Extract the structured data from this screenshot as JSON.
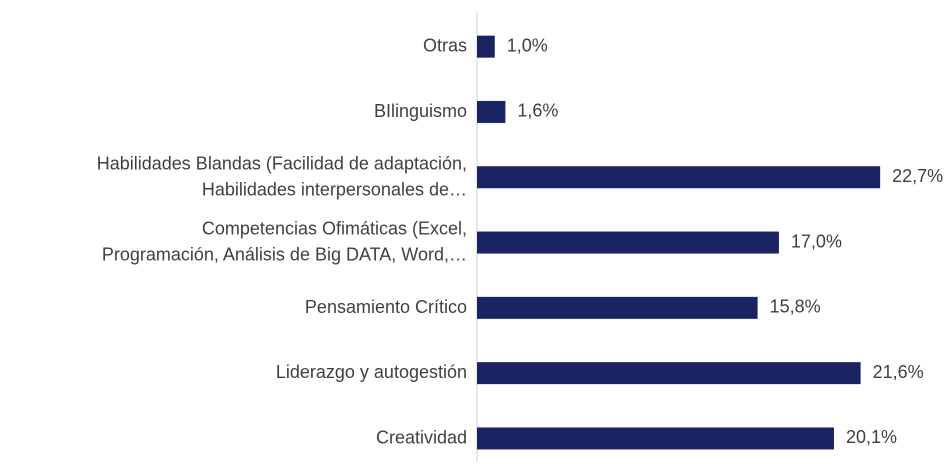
{
  "chart_data": {
    "type": "hbar",
    "categories": [
      "Otras",
      "BIlinguismo",
      "Habilidades Blandas (Facilidad de adaptación,\nHabilidades interpersonales de…",
      "Competencias Ofimáticas (Excel,\nProgramación, Análisis de Big DATA, Word,…",
      "Pensamiento Crítico",
      "Liderazgo y autogestión",
      "Creatividad"
    ],
    "values": [
      1.0,
      1.6,
      22.7,
      17.0,
      15.8,
      21.6,
      20.1
    ],
    "value_labels": [
      "1,0%",
      "1,6%",
      "22,7%",
      "17,0%",
      "15,8%",
      "21,6%",
      "20,1%"
    ],
    "color": "#1b2463",
    "xlim": [
      0,
      25
    ]
  }
}
